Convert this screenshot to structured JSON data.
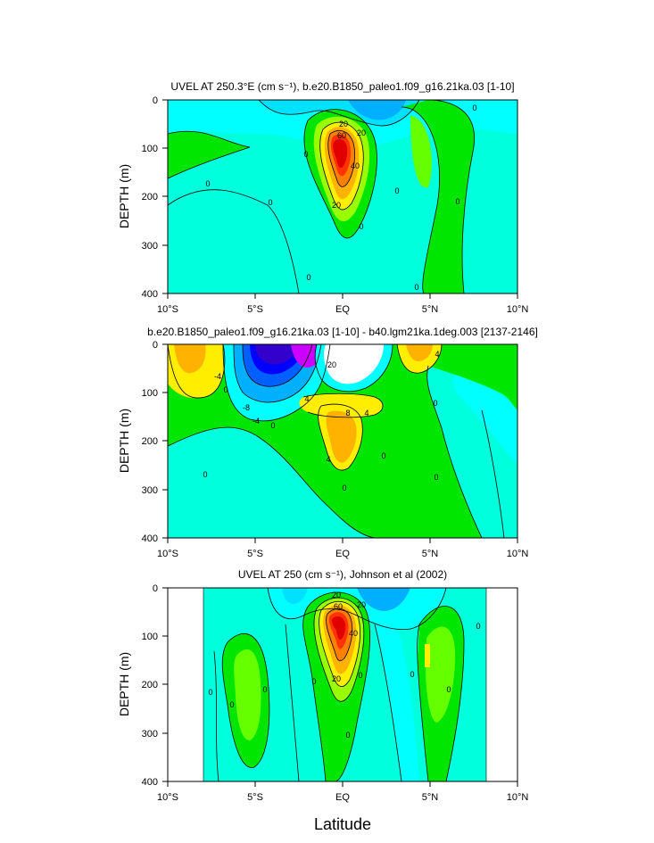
{
  "chart_data": [
    {
      "type": "heatmap",
      "title": "UVEL AT 250.3°E (cm s⁻¹), b.e20.B1850_paleo1.f09_g16.21ka.03 [1-10]",
      "xlabel": "",
      "ylabel": "DEPTH (m)",
      "x_range": [
        -10,
        10
      ],
      "y_range": [
        0,
        400
      ],
      "data_x_range": [
        -10,
        10
      ],
      "x_ticks": [
        "10°S",
        "5°S",
        "EQ",
        "5°N",
        "10°N"
      ],
      "y_ticks": [
        "0",
        "100",
        "200",
        "300",
        "400"
      ],
      "contour_labels": [
        "0",
        "0",
        "0",
        "0",
        "0",
        "0",
        "0",
        "0",
        "0",
        "20",
        "20",
        "20",
        "40",
        "60"
      ],
      "max_value": 80,
      "min_value": -30
    },
    {
      "type": "heatmap",
      "title": "b.e20.B1850_paleo1.f09_g16.21ka.03 [1-10] - b40.lgm21ka.1deg.003 [2137-2146]",
      "xlabel": "",
      "ylabel": "DEPTH (m)",
      "x_range": [
        -10,
        10
      ],
      "y_range": [
        0,
        400
      ],
      "data_x_range": [
        -10,
        10
      ],
      "x_ticks": [
        "10°S",
        "5°S",
        "EQ",
        "5°N",
        "10°N"
      ],
      "y_ticks": [
        "0",
        "100",
        "200",
        "300",
        "400"
      ],
      "contour_labels": [
        "-4",
        "-4",
        "-8",
        "0",
        "0",
        "0",
        "0",
        "0",
        "0",
        "0",
        "4",
        "4",
        "4",
        "4",
        "8",
        "20"
      ],
      "max_value": 30,
      "min_value": -14
    },
    {
      "type": "heatmap",
      "title": "UVEL AT 250 (cm s⁻¹), Johnson et al (2002)",
      "xlabel": "Latitude",
      "ylabel": "DEPTH (m)",
      "x_range": [
        -10,
        10
      ],
      "y_range": [
        0,
        400
      ],
      "data_x_range": [
        -8,
        8.3
      ],
      "x_ticks": [
        "10°S",
        "5°S",
        "EQ",
        "5°N",
        "10°N"
      ],
      "y_ticks": [
        "0",
        "100",
        "200",
        "300",
        "400"
      ],
      "contour_labels": [
        "0",
        "0",
        "0",
        "0",
        "0",
        "0",
        "0",
        "0",
        "0",
        "20",
        "20",
        "20",
        "40",
        "60"
      ],
      "max_value": 90,
      "min_value": -30
    }
  ],
  "colors": {
    "cyan_light": "#00ffdd",
    "cyan": "#00ffff",
    "green": "#00e600",
    "yellow": "#ffee00",
    "orange": "#ffb300",
    "red": "#e00000",
    "blue": "#0000ff",
    "magenta": "#cc00ff"
  }
}
